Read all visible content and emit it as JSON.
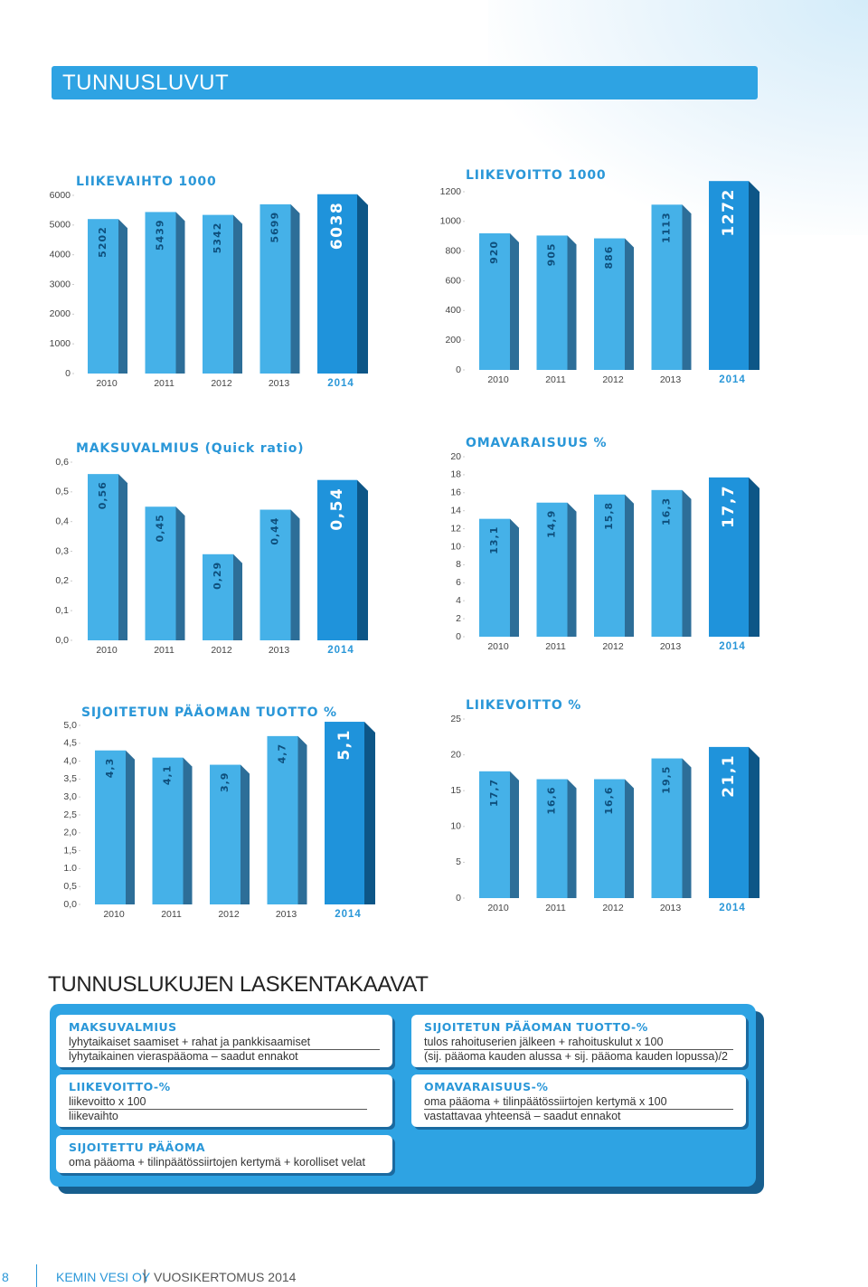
{
  "header": {
    "title": "TUNNUSLUVUT"
  },
  "chart_data": [
    {
      "type": "bar",
      "title": "LIIKEVAIHTO 1000",
      "categories": [
        "2010",
        "2011",
        "2012",
        "2013",
        "2014"
      ],
      "values": [
        5202,
        5439,
        5342,
        5699,
        6038
      ],
      "colors": [
        "#45b1e8",
        "#45b1e8",
        "#45b1e8",
        "#45b1e8",
        "#1f93db"
      ],
      "ylim": [
        0,
        6000
      ],
      "yticks": [
        0,
        1000,
        2000,
        3000,
        4000,
        5000,
        6000
      ]
    },
    {
      "type": "bar",
      "title": "LIIKEVOITTO 1000",
      "categories": [
        "2010",
        "2011",
        "2012",
        "2013",
        "2014"
      ],
      "values": [
        920,
        905,
        886,
        1113,
        1272
      ],
      "colors": [
        "#45b1e8",
        "#45b1e8",
        "#45b1e8",
        "#45b1e8",
        "#1f93db"
      ],
      "ylim": [
        0,
        1200
      ],
      "yticks": [
        0,
        200,
        400,
        600,
        800,
        1000,
        1200
      ]
    },
    {
      "type": "bar",
      "title": "MAKSUVALMIUS (Quick ratio)",
      "categories": [
        "2010",
        "2011",
        "2012",
        "2013",
        "2014"
      ],
      "values": [
        0.56,
        0.45,
        0.29,
        0.44,
        0.54
      ],
      "value_labels": [
        "0,56",
        "0,45",
        "0,29",
        "0,44",
        "0,54"
      ],
      "colors": [
        "#45b1e8",
        "#45b1e8",
        "#45b1e8",
        "#45b1e8",
        "#1f93db"
      ],
      "ylim": [
        0,
        0.6
      ],
      "yticks": [
        {
          "value": 0,
          "label": "0,0"
        },
        {
          "value": 0.1,
          "label": "0,1"
        },
        {
          "value": 0.2,
          "label": "0,2"
        },
        {
          "value": 0.3,
          "label": "0,3"
        },
        {
          "value": 0.4,
          "label": "0,4"
        },
        {
          "value": 0.5,
          "label": "0,5"
        },
        {
          "value": 0.6,
          "label": "0,6"
        }
      ]
    },
    {
      "type": "bar",
      "title": "OMAVARAISUUS %",
      "categories": [
        "2010",
        "2011",
        "2012",
        "2013",
        "2014"
      ],
      "values": [
        13.1,
        14.9,
        15.8,
        16.3,
        17.7
      ],
      "value_labels": [
        "13,1",
        "14,9",
        "15,8",
        "16,3",
        "17,7"
      ],
      "colors": [
        "#45b1e8",
        "#45b1e8",
        "#45b1e8",
        "#45b1e8",
        "#1f93db"
      ],
      "ylim": [
        0,
        20
      ],
      "yticks": [
        0,
        2,
        4,
        6,
        8,
        10,
        12,
        14,
        16,
        18,
        20
      ]
    },
    {
      "type": "bar",
      "title": "SIJOITETUN PÄÄOMAN TUOTTO %",
      "categories": [
        "2010",
        "2011",
        "2012",
        "2013",
        "2014"
      ],
      "values": [
        4.3,
        4.1,
        3.9,
        4.7,
        5.1
      ],
      "value_labels": [
        "4,3",
        "4,1",
        "3,9",
        "4,7",
        "5,1"
      ],
      "colors": [
        "#45b1e8",
        "#45b1e8",
        "#45b1e8",
        "#45b1e8",
        "#1f93db"
      ],
      "ylim": [
        0,
        5
      ],
      "yticks": [
        {
          "value": 0,
          "label": "0,0"
        },
        {
          "value": 0.5,
          "label": "0,5"
        },
        {
          "value": 1,
          "label": "1.0"
        },
        {
          "value": 1.5,
          "label": "1,5"
        },
        {
          "value": 2,
          "label": "2,0"
        },
        {
          "value": 2.5,
          "label": "2,5"
        },
        {
          "value": 3,
          "label": "3,0"
        },
        {
          "value": 3.5,
          "label": "3,5"
        },
        {
          "value": 4,
          "label": "4,0"
        },
        {
          "value": 4.5,
          "label": "4,5"
        },
        {
          "value": 5,
          "label": "5,0"
        }
      ]
    },
    {
      "type": "bar",
      "title": "LIIKEVOITTO %",
      "categories": [
        "2010",
        "2011",
        "2012",
        "2013",
        "2014"
      ],
      "values": [
        17.7,
        16.6,
        16.6,
        19.5,
        21.1
      ],
      "value_labels": [
        "17,7",
        "16,6",
        "16,6",
        "19,5",
        "21,1"
      ],
      "colors": [
        "#45b1e8",
        "#45b1e8",
        "#45b1e8",
        "#45b1e8",
        "#1f93db"
      ],
      "ylim": [
        0,
        25
      ],
      "yticks": [
        0,
        5,
        10,
        15,
        20,
        25
      ]
    }
  ],
  "formulas": {
    "title": "TUNNUSLUKUJEN LASKENTAKAAVAT",
    "items": [
      {
        "title": "MAKSUVALMIUS",
        "numerator": "lyhytaikaiset saamiset + rahat ja pankkisaamiset",
        "denominator": "lyhytaikainen vieraspääoma – saadut ennakot"
      },
      {
        "title": "SIJOITETUN PÄÄOMAN TUOTTO-%",
        "numerator": "tulos rahoituserien jälkeen + rahoituskulut x 100",
        "denominator": "(sij. pääoma kauden alussa + sij. pääoma kauden lopussa)/2"
      },
      {
        "title": "LIIKEVOITTO-%",
        "numerator": "liikevoitto x 100",
        "denominator": "liikevaihto"
      },
      {
        "title": "OMAVARAISUUS-%",
        "numerator": "oma pääoma + tilinpäätössiirtojen kertymä x 100",
        "denominator": "vastattavaa yhteensä – saadut ennakot"
      },
      {
        "title": "SIJOITETTU PÄÄOMA",
        "numerator": "oma pääoma + tilinpäätössiirtojen kertymä + korolliset velat"
      }
    ]
  },
  "footer": {
    "page": "8",
    "company": "KEMIN VESI OY",
    "report": "VUOSIKERTOMUS 2014"
  }
}
